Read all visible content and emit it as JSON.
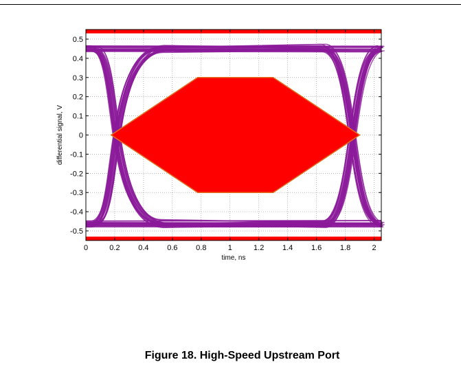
{
  "chart_data": {
    "type": "line",
    "xlabel": "time, ns",
    "ylabel": "differential signal, V",
    "xlim": [
      0,
      2.05
    ],
    "ylim": [
      -0.55,
      0.55
    ],
    "x_ticks": [
      0,
      0.2,
      0.4,
      0.6,
      0.8,
      1,
      1.2,
      1.4,
      1.6,
      1.8,
      2
    ],
    "y_ticks": [
      0.5,
      0.4,
      0.3,
      0.2,
      0.1,
      0,
      -0.1,
      -0.2,
      -0.3,
      -0.4,
      -0.5
    ],
    "grid": true,
    "eye_mask": {
      "name": "",
      "color": "#ff0000",
      "points": [
        [
          0.175,
          0
        ],
        [
          0.775,
          0.3
        ],
        [
          1.3,
          0.3
        ],
        [
          1.9,
          0
        ],
        [
          1.3,
          -0.3
        ],
        [
          0.775,
          -0.3
        ]
      ]
    },
    "limit_bands": [
      {
        "y": [
          0.53,
          0.55
        ],
        "color": "#ff0000"
      },
      {
        "y": [
          -0.55,
          -0.53
        ],
        "color": "#ff0000"
      }
    ],
    "trace_color": "#8b1a9a",
    "trace_high_level": 0.45,
    "trace_low_level": -0.465,
    "crossing_times": [
      0.0,
      2.0
    ]
  },
  "figure": {
    "caption": "Figure 18. High-Speed Upstream Port"
  }
}
